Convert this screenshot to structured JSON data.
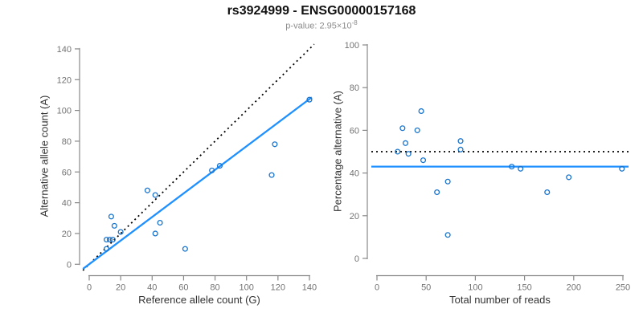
{
  "header": {
    "title": "rs3924999 - ENSG00000157168",
    "subtitle_base": "p-value: 2.95×10",
    "subtitle_exponent": "-8"
  },
  "colors": {
    "point": "#1874CD",
    "fit_line": "#1E90FF",
    "reference_line": "#000000",
    "axis": "#888888",
    "tick_label": "#737373",
    "axis_label": "#333333",
    "title": "#111111",
    "subtitle": "#8c8c8c"
  },
  "chart_data": [
    {
      "type": "scatter",
      "title": "",
      "xlabel": "Reference allele count (G)",
      "ylabel": "Alternative allele count (A)",
      "xlim": [
        0,
        140
      ],
      "ylim": [
        0,
        140
      ],
      "xticks": [
        0,
        20,
        40,
        60,
        80,
        100,
        120,
        140
      ],
      "yticks": [
        0,
        20,
        40,
        60,
        80,
        100,
        120,
        140
      ],
      "grid": false,
      "legend": "none",
      "points": [
        [
          11,
          10
        ],
        [
          11,
          16
        ],
        [
          13,
          16
        ],
        [
          15,
          16
        ],
        [
          14,
          31
        ],
        [
          16,
          25
        ],
        [
          20,
          21
        ],
        [
          37,
          48
        ],
        [
          42,
          45
        ],
        [
          45,
          27
        ],
        [
          42,
          20
        ],
        [
          61,
          10
        ],
        [
          78,
          61
        ],
        [
          83,
          64
        ],
        [
          116,
          58
        ],
        [
          118,
          78
        ],
        [
          140,
          107
        ]
      ],
      "lines": [
        {
          "name": "identity-line",
          "style": "dotted",
          "color": "#000000",
          "from": [
            -4,
            -4
          ],
          "to": [
            143,
            143
          ]
        },
        {
          "name": "fit-line",
          "style": "solid",
          "color": "#1E90FF",
          "from": [
            -4,
            -3
          ],
          "to": [
            141.5,
            108.5
          ]
        }
      ]
    },
    {
      "type": "scatter",
      "title": "",
      "xlabel": "Total number of reads",
      "ylabel": "Percentage alternative (A)",
      "xlim": [
        0,
        250
      ],
      "ylim": [
        0,
        100
      ],
      "xticks": [
        0,
        50,
        100,
        150,
        200,
        250
      ],
      "yticks": [
        0,
        20,
        40,
        60,
        80,
        100
      ],
      "grid": false,
      "legend": "none",
      "points": [
        [
          21,
          50
        ],
        [
          26,
          61
        ],
        [
          29,
          54
        ],
        [
          32,
          49
        ],
        [
          41,
          60
        ],
        [
          45,
          69
        ],
        [
          47,
          46
        ],
        [
          61,
          31
        ],
        [
          72,
          36
        ],
        [
          72,
          11
        ],
        [
          85,
          55
        ],
        [
          85,
          51
        ],
        [
          137,
          43
        ],
        [
          146,
          42
        ],
        [
          173,
          31
        ],
        [
          195,
          38
        ],
        [
          249,
          42
        ]
      ],
      "lines": [
        {
          "name": "fifty-percent-line",
          "style": "dotted",
          "color": "#000000",
          "y": 50
        },
        {
          "name": "mean-percentage-line",
          "style": "solid",
          "color": "#1E90FF",
          "y": 43
        }
      ]
    }
  ]
}
